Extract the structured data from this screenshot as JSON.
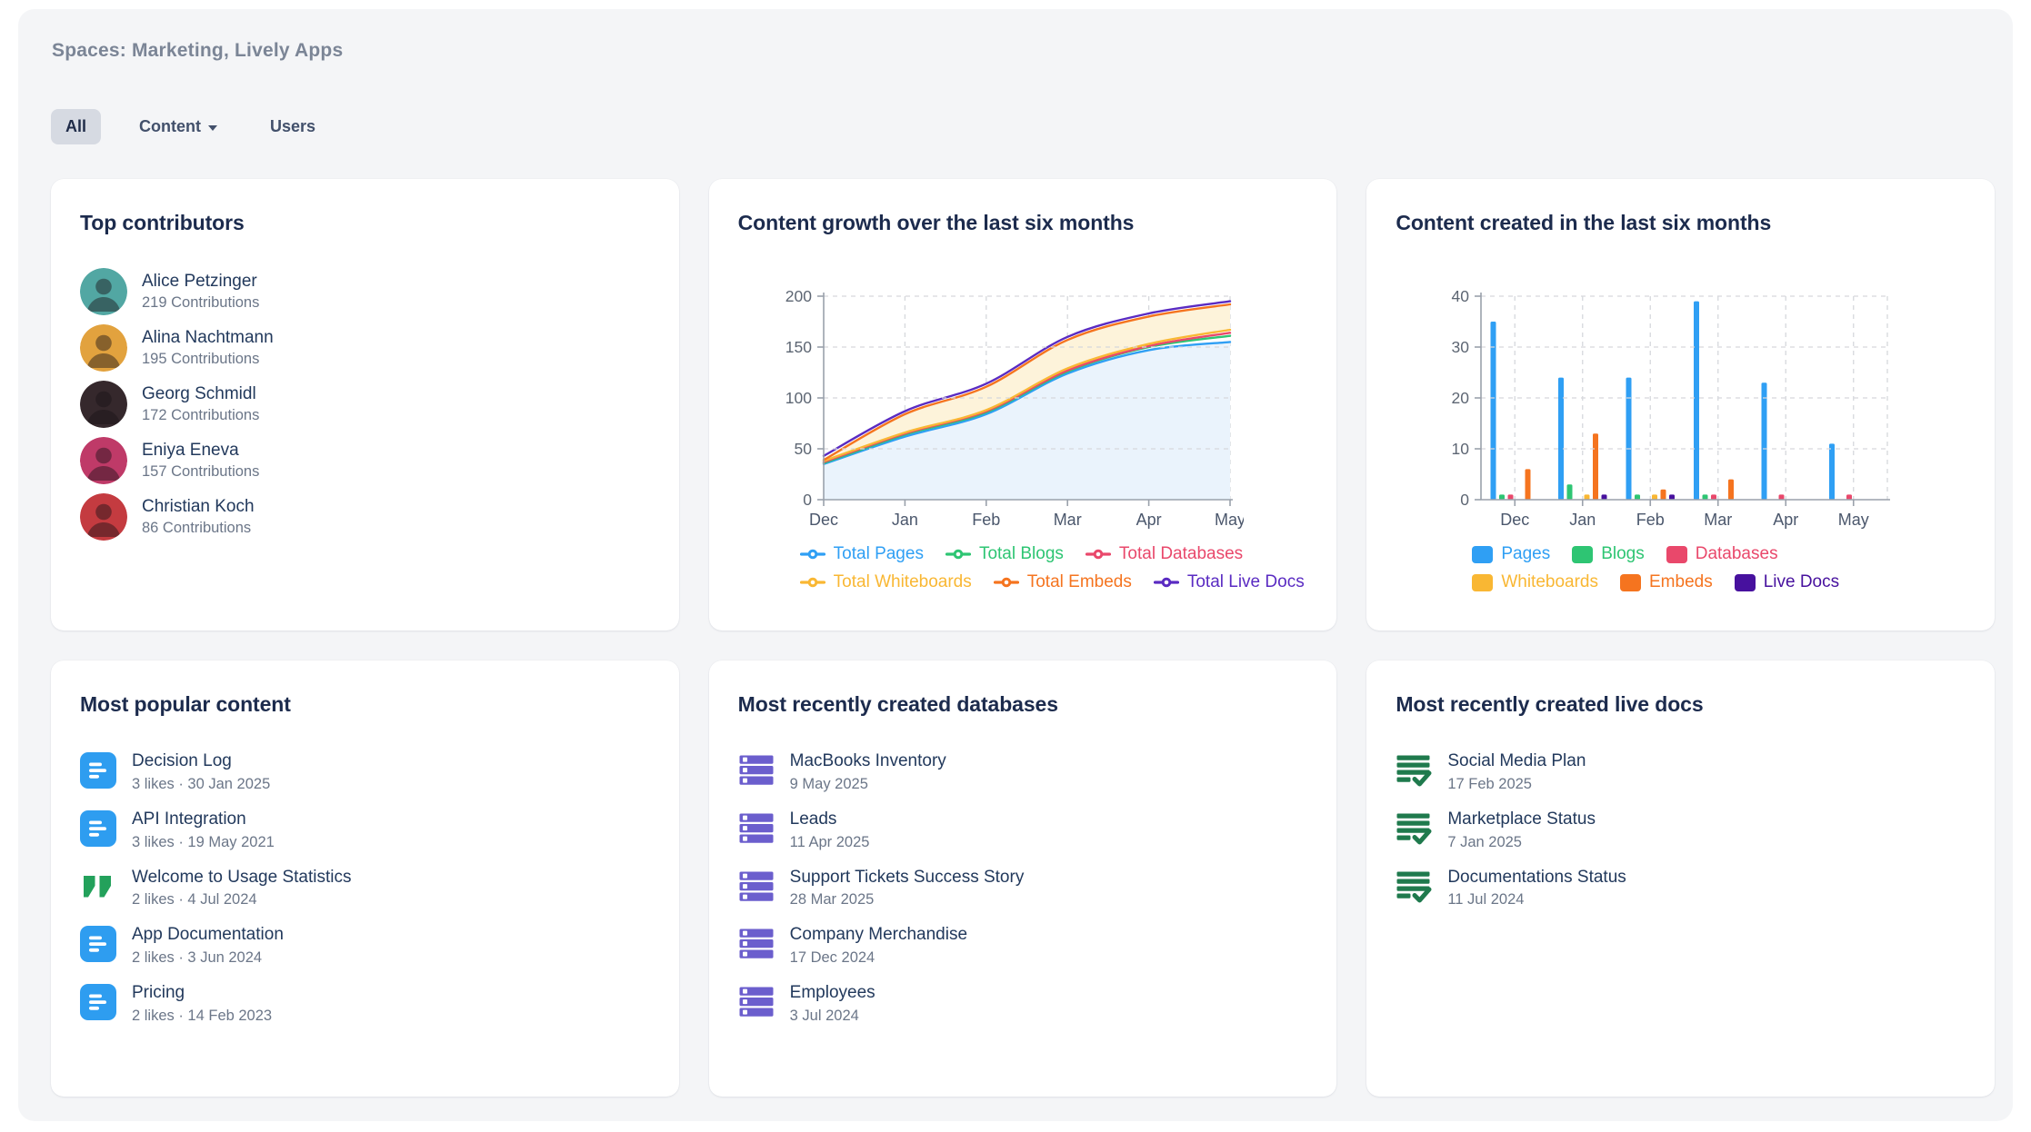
{
  "header": {
    "title": "Spaces: Marketing, Lively Apps"
  },
  "tabs": [
    {
      "label": "All",
      "active": true,
      "has_dropdown": false
    },
    {
      "label": "Content",
      "active": false,
      "has_dropdown": true
    },
    {
      "label": "Users",
      "active": false,
      "has_dropdown": false
    }
  ],
  "cards": {
    "top_contributors": {
      "title": "Top contributors",
      "items": [
        {
          "name": "Alice Petzinger",
          "contributions": "219 Contributions",
          "avatar_color": "#52a7a3"
        },
        {
          "name": "Alina Nachtmann",
          "contributions": "195 Contributions",
          "avatar_color": "#e2a23e"
        },
        {
          "name": "Georg Schmidl",
          "contributions": "172 Contributions",
          "avatar_color": "#35282c"
        },
        {
          "name": "Eniya Eneva",
          "contributions": "157 Contributions",
          "avatar_color": "#bf3a68"
        },
        {
          "name": "Christian Koch",
          "contributions": "86 Contributions",
          "avatar_color": "#c43b40"
        }
      ]
    },
    "content_growth": {
      "title": "Content growth over the last six months"
    },
    "content_created": {
      "title": "Content created in the last six months"
    },
    "most_popular": {
      "title": "Most popular content",
      "items": [
        {
          "title": "Decision Log",
          "meta": "3 likes · 30 Jan 2025",
          "icon": "page-icon"
        },
        {
          "title": "API Integration",
          "meta": "3 likes · 19 May 2021",
          "icon": "page-icon"
        },
        {
          "title": "Welcome to Usage Statistics",
          "meta": "2 likes · 4 Jul 2024",
          "icon": "blog-icon"
        },
        {
          "title": "App Documentation",
          "meta": "2 likes · 3 Jun 2024",
          "icon": "page-icon"
        },
        {
          "title": "Pricing",
          "meta": "2 likes · 14 Feb 2023",
          "icon": "page-icon"
        }
      ]
    },
    "recent_databases": {
      "title": "Most recently created databases",
      "items": [
        {
          "title": "MacBooks Inventory",
          "meta": "9 May 2025",
          "icon": "database-icon"
        },
        {
          "title": "Leads",
          "meta": "11 Apr 2025",
          "icon": "database-icon"
        },
        {
          "title": "Support Tickets Success Story",
          "meta": "28 Mar 2025",
          "icon": "database-icon"
        },
        {
          "title": "Company Merchandise",
          "meta": "17 Dec 2024",
          "icon": "database-icon"
        },
        {
          "title": "Employees",
          "meta": "3 Jul 2024",
          "icon": "database-icon"
        }
      ]
    },
    "recent_livedocs": {
      "title": "Most recently created live docs",
      "items": [
        {
          "title": "Social Media Plan",
          "meta": "17 Feb 2025",
          "icon": "livedoc-icon"
        },
        {
          "title": "Marketplace Status",
          "meta": "7 Jan 2025",
          "icon": "livedoc-icon"
        },
        {
          "title": "Documentations Status",
          "meta": "11 Jul 2024",
          "icon": "livedoc-icon"
        }
      ]
    }
  },
  "chart_data": [
    {
      "type": "area",
      "title": "Content growth over the last six months",
      "x": [
        "Dec",
        "Jan",
        "Feb",
        "Mar",
        "Apr",
        "May"
      ],
      "xlabel": "",
      "ylabel": "",
      "ylim": [
        0,
        200
      ],
      "yticks": [
        0,
        50,
        100,
        150,
        200
      ],
      "grid": true,
      "legend_position": "bottom",
      "series": [
        {
          "name": "Total Pages",
          "color": "#2f9ff4",
          "fill": "#eaf3fc",
          "values": [
            35,
            62,
            84,
            124,
            147,
            155
          ]
        },
        {
          "name": "Total Blogs",
          "color": "#2ec573",
          "fill": null,
          "values": [
            36,
            64,
            86,
            126,
            150,
            161
          ]
        },
        {
          "name": "Total Databases",
          "color": "#e9486b",
          "fill": null,
          "values": [
            37,
            65,
            87,
            127,
            151,
            164
          ]
        },
        {
          "name": "Total Whiteboards",
          "color": "#f9b733",
          "fill": "#ffffff",
          "values": [
            38,
            66,
            88,
            129,
            153,
            167
          ]
        },
        {
          "name": "Total Embeds",
          "color": "#f5741f",
          "fill": "#fdf3da",
          "values": [
            39,
            84,
            111,
            157,
            180,
            192
          ]
        },
        {
          "name": "Total Live Docs",
          "color": "#5a2bc2",
          "fill": null,
          "values": [
            43,
            87,
            114,
            160,
            183,
            195
          ]
        }
      ]
    },
    {
      "type": "bar",
      "title": "Content created in the last six months",
      "categories": [
        "Dec",
        "Jan",
        "Feb",
        "Mar",
        "Apr",
        "May"
      ],
      "xlabel": "",
      "ylabel": "",
      "ylim": [
        0,
        40
      ],
      "yticks": [
        0,
        10,
        20,
        30,
        40
      ],
      "grid": true,
      "legend_position": "bottom",
      "series": [
        {
          "name": "Pages",
          "color": "#2f9ff4",
          "values": [
            35,
            24,
            24,
            39,
            23,
            11
          ]
        },
        {
          "name": "Blogs",
          "color": "#2ec573",
          "values": [
            1,
            3,
            1,
            1,
            0,
            0
          ]
        },
        {
          "name": "Databases",
          "color": "#e9486b",
          "values": [
            1,
            0,
            0,
            1,
            1,
            1
          ]
        },
        {
          "name": "Whiteboards",
          "color": "#f9b733",
          "values": [
            0,
            1,
            1,
            0,
            0,
            0
          ]
        },
        {
          "name": "Embeds",
          "color": "#f5741f",
          "values": [
            6,
            13,
            2,
            4,
            0,
            0
          ]
        },
        {
          "name": "Live Docs",
          "color": "#47119e",
          "values": [
            0,
            1,
            1,
            0,
            0,
            0
          ]
        }
      ]
    }
  ],
  "colors": {
    "panel_bg": "#f4f5f7",
    "card_bg": "#ffffff",
    "page_title_text": "#7b8596",
    "card_title_text": "#1c2b4d",
    "primary_text": "#22395c",
    "secondary_text": "#6b7688",
    "active_tab_bg": "#d6dae2",
    "axis_line": "#9aa1ab",
    "grid_line": "#d6d8dc",
    "tick_label": "#5d6673",
    "month_label": "#4b576c",
    "page_icon": "#2e9df0",
    "blog_icon": "#23a15b",
    "database_icon": "#6b5ecd",
    "livedoc_icon": "#1f7a4d",
    "avatar_silhouette": "rgba(25,18,22,0.45)"
  }
}
